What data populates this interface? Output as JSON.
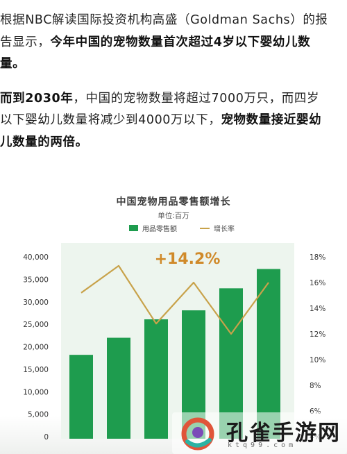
{
  "article": {
    "p1_part1": "根据NBC解读国际投资机构高盛（Goldman Sachs）的报告显示，",
    "p1_bold": "今年中国的宠物数量首次超过4岁以下婴幼儿数量。",
    "p2_bold1": "而到2030年",
    "p2_part2": "，中国的宠物数量将超过7000万只，而四岁以下婴幼儿数量将减少到4000万以下，",
    "p2_bold2": "宠物数量接近婴幼儿数量的两倍。"
  },
  "chart_data": {
    "type": "bar",
    "title": "中国宠物用品零售额增长",
    "subtitle": "单位:百万",
    "annotation": "+14.2%",
    "series": [
      {
        "name": "用品零售额",
        "kind": "bar",
        "axis": "left",
        "values": [
          18200,
          22000,
          26100,
          28100,
          33000,
          37300
        ]
      },
      {
        "name": "增长率",
        "kind": "line",
        "axis": "right",
        "values": [
          15.2,
          17.3,
          12.8,
          16.0,
          12.0,
          16.0
        ]
      }
    ],
    "ylim": [
      0,
      40000
    ],
    "y_ticks": [
      "0",
      "5,000",
      "10,000",
      "15,000",
      "20,000",
      "25,000",
      "30,000",
      "35,000",
      "40,000"
    ],
    "y2lim": [
      4,
      18
    ],
    "y2_ticks": [
      "4%",
      "6%",
      "8%",
      "10%",
      "12%",
      "14%",
      "16%",
      "18%"
    ],
    "legend_position": "top-center",
    "grid": false,
    "colors": {
      "bar": "#1e9c4e",
      "line": "#c8a24a",
      "annotation": "#d08a2a",
      "plot_bg": "#edf5ee"
    }
  },
  "watermark": {
    "title": "孔雀手游网",
    "url": "ktq99.com",
    "colors": {
      "ring": "#e0553a",
      "accent": "#2bb3a3",
      "inner": "#7b4bb8"
    }
  }
}
